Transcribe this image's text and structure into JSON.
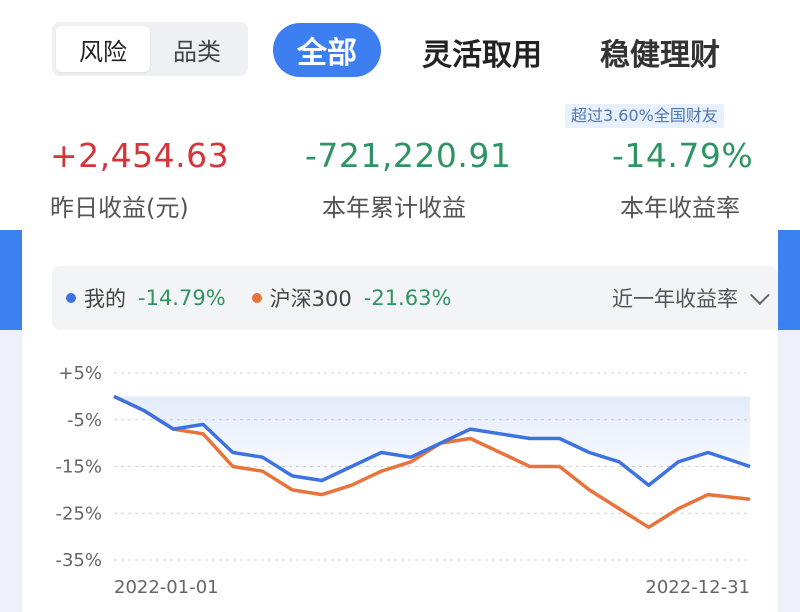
{
  "segment": {
    "items": [
      "风险",
      "品类"
    ],
    "active": 0
  },
  "tabs": [
    {
      "label": "全部",
      "active": true
    },
    {
      "label": "灵活取用",
      "active": false
    },
    {
      "label": "稳健理财",
      "active": false
    }
  ],
  "badge": "超过3.60%全国财友",
  "stats": [
    {
      "value": "+2,454.63",
      "label": "昨日收益(元)",
      "tone": "red"
    },
    {
      "value": "-721,220.91",
      "label": "本年累计收益",
      "tone": "green"
    },
    {
      "value": "-14.79%",
      "label": "本年收益率",
      "tone": "green"
    }
  ],
  "legend": {
    "series": [
      {
        "name": "我的",
        "value": "-14.79%",
        "color": "#3d73e0"
      },
      {
        "name": "沪深300",
        "value": "-21.63%",
        "color": "#e8733b"
      }
    ],
    "period": "近一年收益率"
  },
  "colors": {
    "accent": "#3d7ff0",
    "positive": "#d4343a",
    "negative": "#2e9463"
  },
  "chart_data": {
    "type": "line",
    "y_ticks": [
      "+5%",
      "-5%",
      "-15%",
      "-25%",
      "-35%"
    ],
    "y_tick_values": [
      5,
      -5,
      -15,
      -25,
      -35
    ],
    "ylim": [
      -35,
      5
    ],
    "x_start": "2022-01-01",
    "x_end": "2022-12-31",
    "x_tick_labels": [
      "2022-01-01",
      "2022-12-31"
    ],
    "series": [
      {
        "name": "我的",
        "color": "#3d73e0",
        "x": [
          "2022-01-01",
          "2022-01-18",
          "2022-02-04",
          "2022-02-21",
          "2022-03-10",
          "2022-03-27",
          "2022-04-13",
          "2022-04-30",
          "2022-05-17",
          "2022-06-03",
          "2022-06-20",
          "2022-07-07",
          "2022-07-24",
          "2022-08-10",
          "2022-08-27",
          "2022-09-13",
          "2022-09-30",
          "2022-10-17",
          "2022-11-03",
          "2022-11-20",
          "2022-12-07",
          "2022-12-31"
        ],
        "values": [
          0,
          -3,
          -7,
          -6,
          -12,
          -13,
          -17,
          -18,
          -15,
          -12,
          -13,
          -10,
          -7,
          -8,
          -9,
          -9,
          -12,
          -14,
          -19,
          -14,
          -12,
          -15
        ]
      },
      {
        "name": "沪深300",
        "color": "#e8733b",
        "x": [
          "2022-01-01",
          "2022-01-18",
          "2022-02-04",
          "2022-02-21",
          "2022-03-10",
          "2022-03-27",
          "2022-04-13",
          "2022-04-30",
          "2022-05-17",
          "2022-06-03",
          "2022-06-20",
          "2022-07-07",
          "2022-07-24",
          "2022-08-10",
          "2022-08-27",
          "2022-09-13",
          "2022-09-30",
          "2022-10-17",
          "2022-11-03",
          "2022-11-20",
          "2022-12-07",
          "2022-12-31"
        ],
        "values": [
          0,
          -3,
          -7,
          -8,
          -15,
          -16,
          -20,
          -21,
          -19,
          -16,
          -14,
          -10,
          -9,
          -12,
          -15,
          -15,
          -20,
          -24,
          -28,
          -24,
          -21,
          -22
        ]
      }
    ]
  }
}
